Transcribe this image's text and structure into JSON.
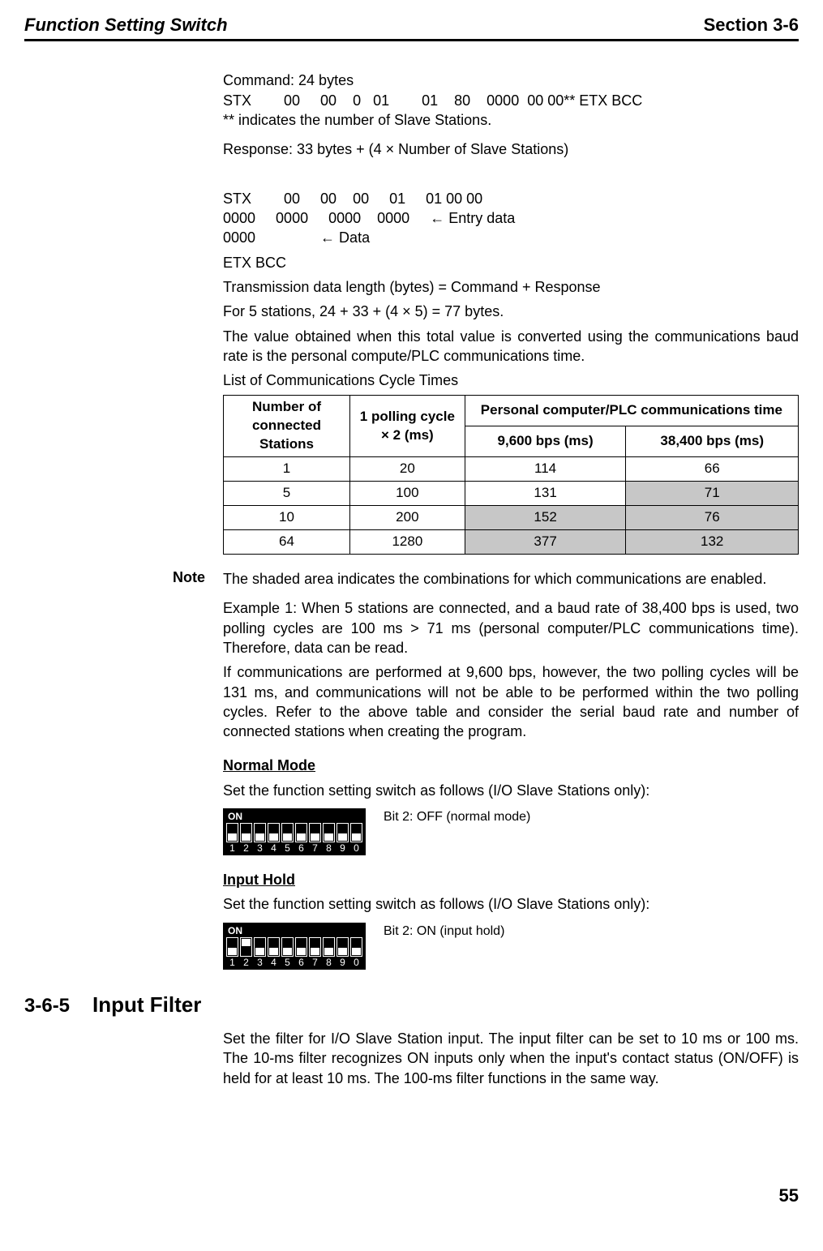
{
  "header": {
    "left": "Function Setting Switch",
    "right": "Section 3-6"
  },
  "cmd": {
    "l1": "Command: 24 bytes",
    "l2": "STX        00     00    0   01        01    80    0000  00 00** ETX BCC",
    "l3": "** indicates the number of Slave Stations.",
    "l4": "Response: 33 bytes + (4 × Number of Slave Stations)",
    "l5": "STX        00     00    00     01     01 00 00",
    "l6": "0000     0000     0000    0000     ← Entry data",
    "l7": "0000                ← Data",
    "l8": "ETX BCC",
    "l9": "Transmission data length (bytes) = Command + Response",
    "l10": "For 5 stations, 24 + 33 + (4 × 5) = 77 bytes.",
    "l11": "The value obtained when this total value is converted using the communications baud rate is the personal compute/PLC communications time.",
    "l12": "List of Communications Cycle Times"
  },
  "table": {
    "h1": "Number of connected Stations",
    "h2": "1 polling cycle × 2 (ms)",
    "h3": "Personal computer/PLC communications time",
    "h4": "9,600 bps (ms)",
    "h5": "38,400 bps (ms)",
    "rows": [
      {
        "c1": "1",
        "c2": "20",
        "c3": "114",
        "c4": "66",
        "s3": false,
        "s4": false
      },
      {
        "c1": "5",
        "c2": "100",
        "c3": "131",
        "c4": "71",
        "s3": false,
        "s4": true
      },
      {
        "c1": "10",
        "c2": "200",
        "c3": "152",
        "c4": "76",
        "s3": true,
        "s4": true
      },
      {
        "c1": "64",
        "c2": "1280",
        "c3": "377",
        "c4": "132",
        "s3": true,
        "s4": true
      }
    ]
  },
  "note": {
    "label": "Note",
    "body": "The shaded area indicates the combinations for which communications are enabled."
  },
  "para": {
    "ex1": "Example 1: When 5 stations are connected, and a baud rate of 38,400 bps is used, two polling cycles are 100 ms > 71 ms (personal computer/PLC communications time). Therefore, data can be read.",
    "ex2": "If communications are performed at 9,600 bps, however, the two polling cycles will be 131 ms, and communications will not be able to be performed within the two polling cycles. Refer to the above table and consider the serial baud rate and number of connected stations when creating the program."
  },
  "normal": {
    "head": "Normal Mode",
    "text": "Set the function setting switch as follows (I/O Slave Stations only):",
    "caption": "Bit 2: OFF (normal mode)",
    "positions": [
      "down",
      "down",
      "down",
      "down",
      "down",
      "down",
      "down",
      "down",
      "down",
      "down"
    ],
    "numbers": [
      "1",
      "2",
      "3",
      "4",
      "5",
      "6",
      "7",
      "8",
      "9",
      "0"
    ],
    "onLabel": "ON"
  },
  "hold": {
    "head": "Input Hold",
    "text": "Set the function setting switch as follows (I/O Slave Stations only):",
    "caption": "Bit 2: ON (input hold)",
    "positions": [
      "down",
      "up",
      "down",
      "down",
      "down",
      "down",
      "down",
      "down",
      "down",
      "down"
    ],
    "numbers": [
      "1",
      "2",
      "3",
      "4",
      "5",
      "6",
      "7",
      "8",
      "9",
      "0"
    ],
    "onLabel": "ON"
  },
  "sect365": {
    "num": "3-6-5",
    "title": "Input Filter",
    "body": "Set the filter for I/O Slave Station input. The input filter can be set to 10 ms or 100 ms. The 10-ms filter recognizes ON inputs only when the input's contact status (ON/OFF) is held for at least 10 ms. The 100-ms filter functions in the same way."
  },
  "pageNumber": "55"
}
